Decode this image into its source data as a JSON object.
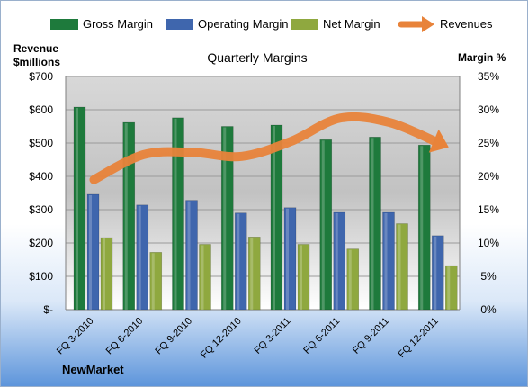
{
  "chart_data": {
    "type": "bar",
    "title": "Quarterly Margins",
    "categories": [
      "FQ 3-2010",
      "FQ 6-2010",
      "FQ 9-2010",
      "FQ 12-2010",
      "FQ 3-2011",
      "FQ 6-2011",
      "FQ 9-2011",
      "FQ 12-2011"
    ],
    "series": [
      {
        "name": "Gross Margin",
        "color": "#1e7a3c",
        "values": [
          30.4,
          28.1,
          28.8,
          27.5,
          27.7,
          25.5,
          25.9,
          24.7
        ]
      },
      {
        "name": "Operating Margin",
        "color": "#3f66ad",
        "values": [
          17.3,
          15.7,
          16.4,
          14.5,
          15.3,
          14.6,
          14.6,
          11.1
        ]
      },
      {
        "name": "Net Margin",
        "color": "#8fa83f",
        "values": [
          10.8,
          8.6,
          9.8,
          10.9,
          9.8,
          9.1,
          12.9,
          6.6
        ]
      }
    ],
    "line_series": {
      "name": "Revenues",
      "color": "#e8833a",
      "axis": "left",
      "values": [
        390,
        465,
        472,
        460,
        505,
        575,
        562,
        500
      ]
    },
    "left_axis": {
      "label_line1": "Revenue",
      "label_line2": "$millions",
      "range": [
        0,
        700
      ],
      "ticks": [
        0,
        100,
        200,
        300,
        400,
        500,
        600,
        700
      ],
      "tick_labels": [
        "$-",
        "$100",
        "$200",
        "$300",
        "$400",
        "$500",
        "$600",
        "$700"
      ]
    },
    "right_axis": {
      "label": "Margin %",
      "range": [
        0,
        35
      ],
      "ticks": [
        0,
        5,
        10,
        15,
        20,
        25,
        30,
        35
      ],
      "tick_labels": [
        "0%",
        "5%",
        "10%",
        "15%",
        "20%",
        "25%",
        "30%",
        "35%"
      ]
    },
    "legend_position": "top",
    "grid": true
  },
  "source_label": "NewMarket"
}
